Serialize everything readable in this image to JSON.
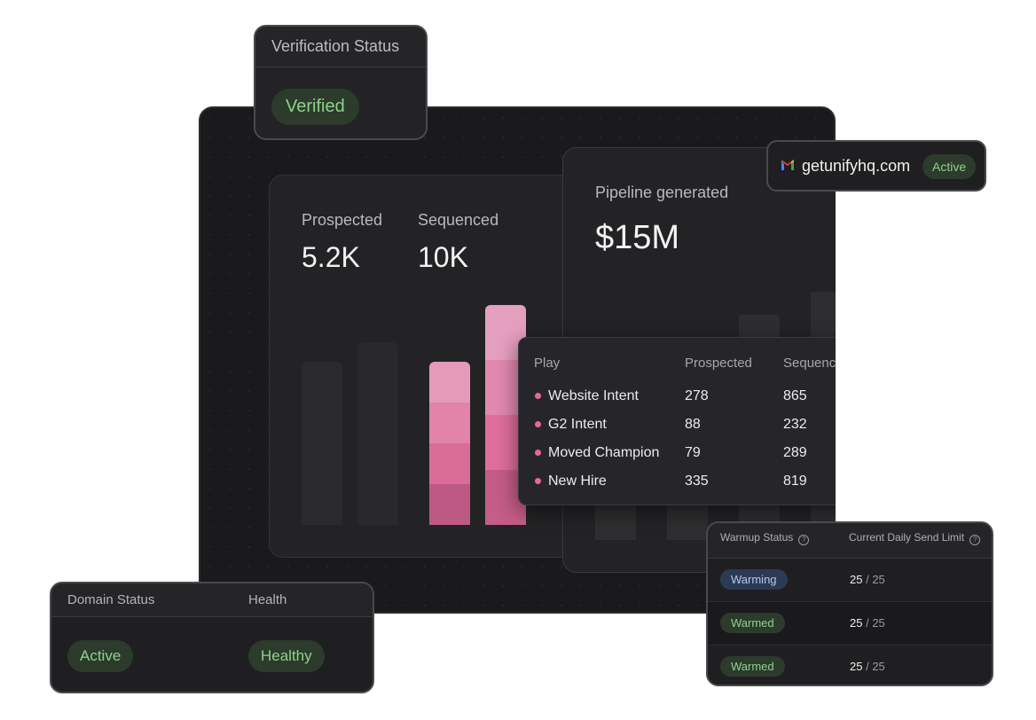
{
  "verification": {
    "title": "Verification Status",
    "status": "Verified"
  },
  "domain_chip": {
    "icon": "gmail-icon",
    "domain": "getunifyhq.com",
    "status": "Active"
  },
  "stats": {
    "prospected_label": "Prospected",
    "prospected_value": "5.2K",
    "sequenced_label": "Sequenced",
    "sequenced_value": "10K"
  },
  "pipeline": {
    "label": "Pipeline generated",
    "value": "$15M"
  },
  "play_table": {
    "headers": [
      "Play",
      "Prospected",
      "Sequenced"
    ],
    "rows": [
      {
        "play": "Website Intent",
        "prospected": "278",
        "sequenced": "865"
      },
      {
        "play": "G2 Intent",
        "prospected": "88",
        "sequenced": "232"
      },
      {
        "play": "Moved Champion",
        "prospected": "79",
        "sequenced": "289"
      },
      {
        "play": "New Hire",
        "prospected": "335",
        "sequenced": "819"
      }
    ]
  },
  "domain_status": {
    "headers": [
      "Domain Status",
      "Health"
    ],
    "status": "Active",
    "health": "Healthy"
  },
  "warmup": {
    "headers": [
      "Warmup Status",
      "Current Daily Send Limit"
    ],
    "rows": [
      {
        "status": "Warming",
        "current": "25",
        "limit": "25"
      },
      {
        "status": "Warmed",
        "current": "25",
        "limit": "25"
      },
      {
        "status": "Warmed",
        "current": "25",
        "limit": "25"
      }
    ]
  },
  "colors": {
    "accent_pink": "#e8679a",
    "active_green": "#8fd18b",
    "warming_blue": "#b6c8ea"
  }
}
